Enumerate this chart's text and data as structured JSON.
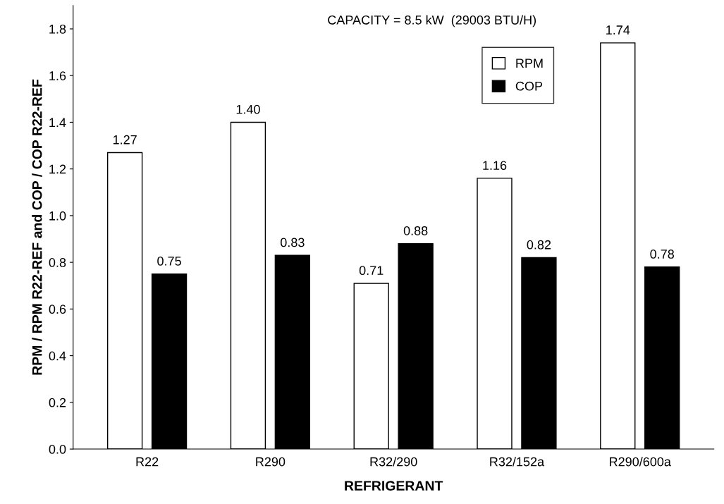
{
  "chart_data": {
    "type": "bar",
    "categories": [
      "R22",
      "R290",
      "R32/290",
      "R32/152a",
      "R290/600a"
    ],
    "series": [
      {
        "name": "RPM",
        "color": "#ffffff",
        "values": [
          1.27,
          1.4,
          0.71,
          1.16,
          1.74
        ],
        "value_labels": [
          "1.27",
          "1.40",
          "0.71",
          "1.16",
          "1.74"
        ]
      },
      {
        "name": "COP",
        "color": "#000000",
        "values": [
          0.75,
          0.83,
          0.88,
          0.82,
          0.78
        ],
        "value_labels": [
          "0.75",
          "0.83",
          "0.88",
          "0.82",
          "0.78"
        ]
      }
    ],
    "xlabel": "REFRIGERANT",
    "ylabel": "RPM / RPM R22-REF and COP / COP R22-REF",
    "annotations": [
      "CAPACITY = 8.5 kW  (29003 BTU/H)"
    ],
    "ylim": [
      0,
      1.9
    ],
    "yticks": [
      {
        "value": 0,
        "label": "0.0"
      },
      {
        "value": 0.2,
        "label": "0.2"
      },
      {
        "value": 0.4,
        "label": "0.4"
      },
      {
        "value": 0.6,
        "label": "0.6"
      },
      {
        "value": 0.8,
        "label": "0.8"
      },
      {
        "value": 1.0,
        "label": "1.0"
      },
      {
        "value": 1.2,
        "label": "1.2"
      },
      {
        "value": 1.4,
        "label": "1.4"
      },
      {
        "value": 1.6,
        "label": "1.6"
      },
      {
        "value": 1.8,
        "label": "1.8"
      }
    ],
    "legend": "top right",
    "grid": false
  }
}
